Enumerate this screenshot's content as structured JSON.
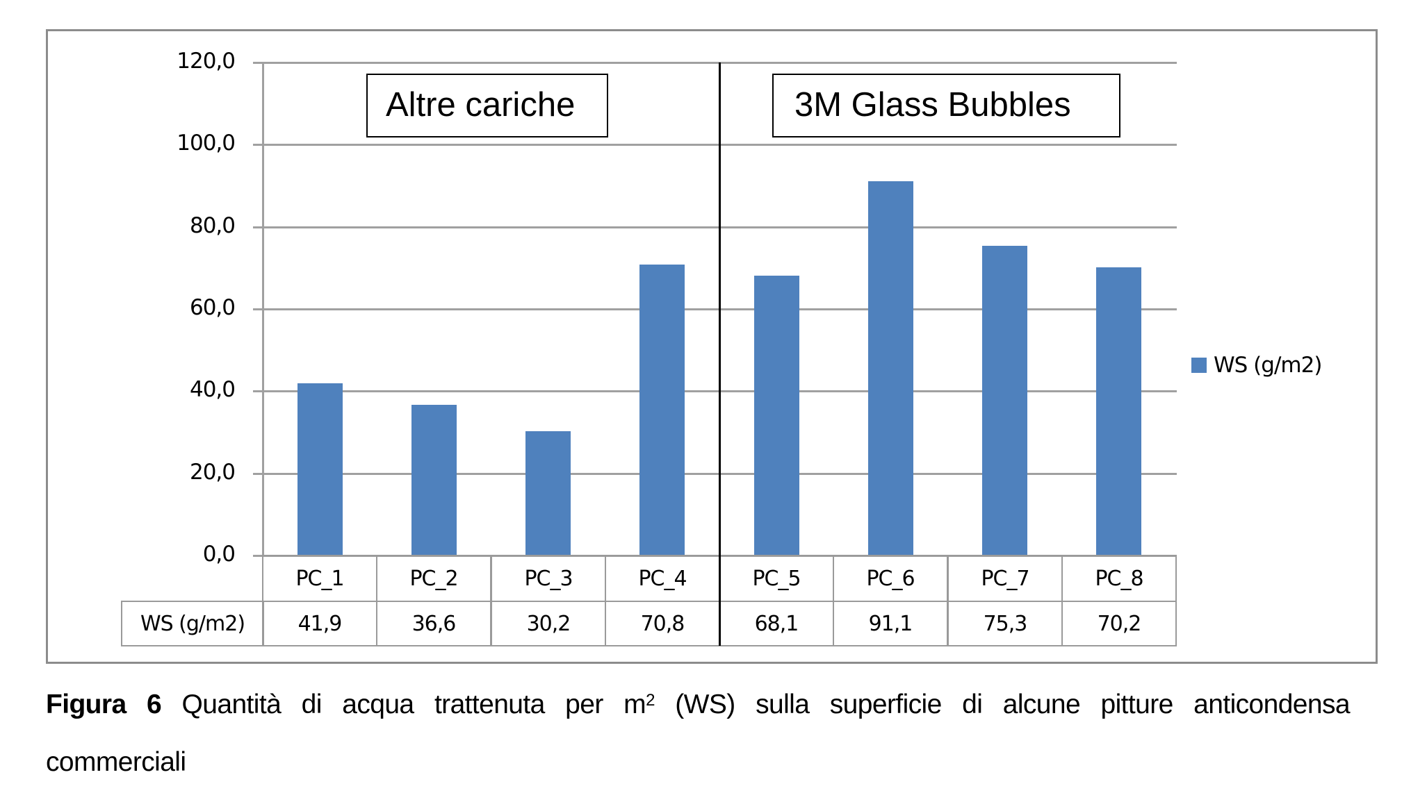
{
  "chart_data": {
    "type": "bar",
    "title": "",
    "xlabel": "",
    "ylabel": "",
    "categories": [
      "PC_1",
      "PC_2",
      "PC_3",
      "PC_4",
      "PC_5",
      "PC_6",
      "PC_7",
      "PC_8"
    ],
    "series": [
      {
        "name": "WS (g/m2)",
        "values": [
          41.9,
          36.6,
          30.2,
          70.8,
          68.1,
          91.1,
          75.3,
          70.2
        ],
        "color": "#4f81bd"
      }
    ],
    "ylim": [
      0,
      120
    ],
    "yticks": [
      "0,0",
      "20,0",
      "40,0",
      "60,0",
      "80,0",
      "100,0",
      "120,0"
    ],
    "grid": true,
    "legend_position": "right",
    "data_table": {
      "row_label": "WS (g/m2)",
      "values": [
        "41,9",
        "36,6",
        "30,2",
        "70,8",
        "68,1",
        "91,1",
        "75,3",
        "70,2"
      ]
    },
    "annotations": [
      {
        "text": "Altre cariche",
        "applies_to": [
          "PC_1",
          "PC_2",
          "PC_3",
          "PC_4"
        ]
      },
      {
        "text": "3M Glass Bubbles",
        "applies_to": [
          "PC_5",
          "PC_6",
          "PC_7",
          "PC_8"
        ]
      }
    ],
    "group_divider_after": "PC_4"
  },
  "legend": {
    "label": "WS (g/m2)"
  },
  "groups": {
    "left": "Altre cariche",
    "right": "3M Glass Bubbles"
  },
  "table": {
    "row_label": "WS (g/m2)",
    "headers": [
      "PC_1",
      "PC_2",
      "PC_3",
      "PC_4",
      "PC_5",
      "PC_6",
      "PC_7",
      "PC_8"
    ],
    "values": [
      "41,9",
      "36,6",
      "30,2",
      "70,8",
      "68,1",
      "91,1",
      "75,3",
      "70,2"
    ]
  },
  "caption": {
    "label": "Figura 6",
    "text_before_sup": " Quantità di acqua trattenuta per m",
    "sup": "2",
    "text_after_sup": " (WS) sulla superficie di alcune pitture anticondensa",
    "line2": "commerciali"
  }
}
